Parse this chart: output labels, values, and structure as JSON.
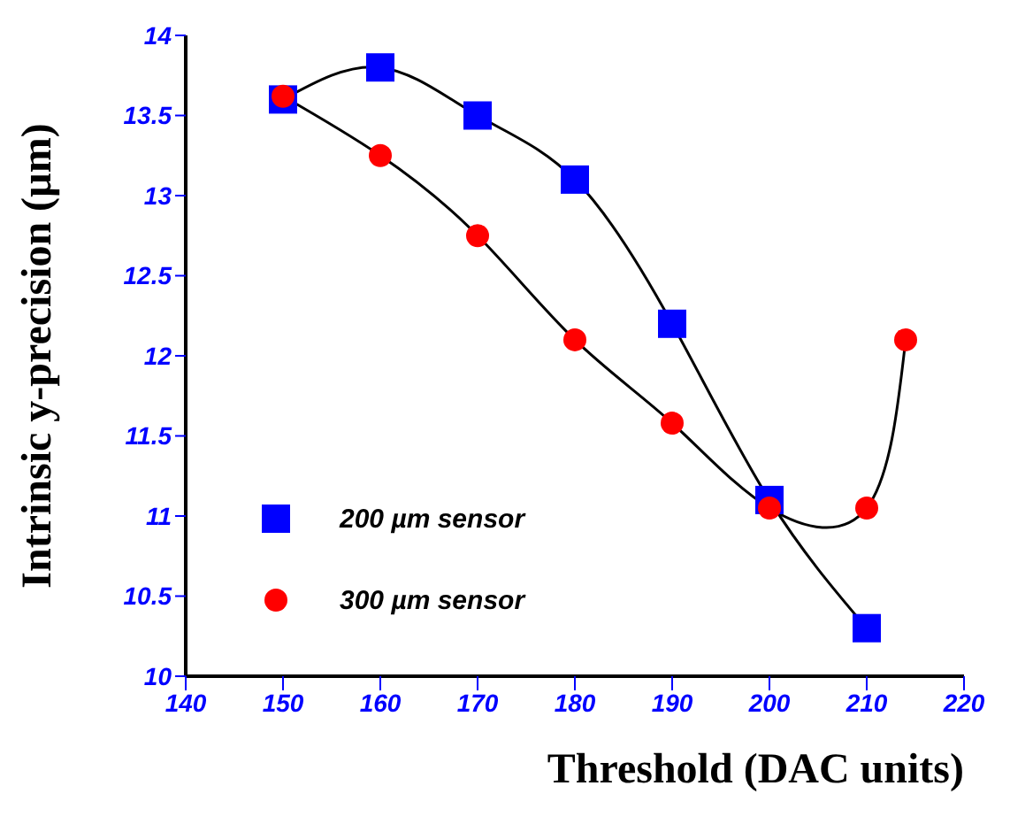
{
  "chart_data": {
    "type": "line",
    "xlabel": "Threshold  (DAC units)",
    "ylabel": "Intrinsic y-precision  (µm)",
    "xlim": [
      140,
      220
    ],
    "xticks": [
      140,
      150,
      160,
      170,
      180,
      190,
      200,
      210,
      220
    ],
    "ylim": [
      10,
      14
    ],
    "yticks": [
      10,
      10.5,
      11,
      11.5,
      12,
      12.5,
      13,
      13.5,
      14
    ],
    "legend": "bottom left",
    "grid": false,
    "series": [
      {
        "name": "200 µm sensor",
        "color": "#0000ff",
        "marker": "square",
        "x": [
          150,
          160,
          170,
          180,
          190,
          200,
          210
        ],
        "values": [
          13.6,
          13.8,
          13.5,
          13.1,
          12.2,
          11.1,
          10.3
        ]
      },
      {
        "name": "300 µm sensor",
        "color": "#ff0000",
        "marker": "circle",
        "x": [
          150,
          160,
          170,
          180,
          190,
          200,
          210,
          214
        ],
        "values": [
          13.62,
          13.25,
          12.75,
          12.1,
          11.58,
          11.05,
          11.05,
          12.1
        ]
      }
    ]
  }
}
